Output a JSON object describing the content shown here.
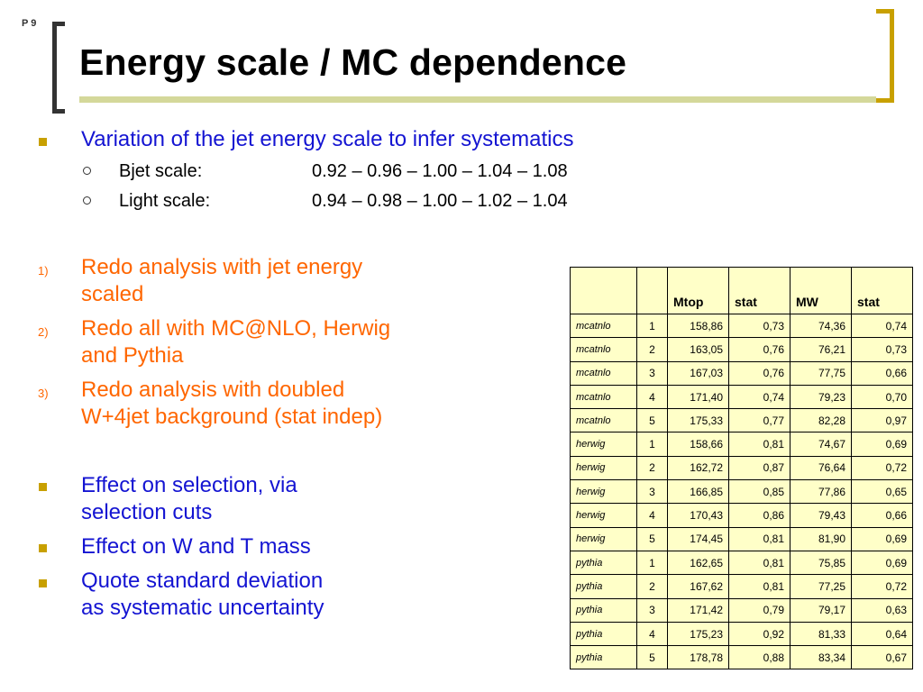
{
  "page_number": "P 9",
  "title": "Energy scale / MC dependence",
  "intro": {
    "bullet": "Variation of the jet energy scale to infer systematics",
    "sub_items": [
      {
        "label": "Bjet scale:",
        "values": "0.92 – 0.96 – 1.00 – 1.04 – 1.08"
      },
      {
        "label": "Light scale:",
        "values": "0.94 – 0.98 – 1.00 – 1.02 – 1.04"
      }
    ]
  },
  "numbered": [
    {
      "num": "1)",
      "line1": "Redo analysis with jet energy",
      "line2": "scaled"
    },
    {
      "num": "2)",
      "line1": "Redo all with MC@NLO, Herwig",
      "line2": "and Pythia"
    },
    {
      "num": "3)",
      "line1": "Redo analysis with doubled",
      "line2": "W+4jet background (stat indep)"
    }
  ],
  "bullets": [
    {
      "line1": "Effect on selection, via",
      "line2": "selection cuts"
    },
    {
      "line1": "Effect on W and T mass",
      "line2": ""
    },
    {
      "line1": "Quote standard deviation",
      "line2": "as systematic uncertainty"
    }
  ],
  "table": {
    "headers": [
      "",
      "",
      "Mtop",
      "stat",
      "MW",
      "stat"
    ],
    "rows": [
      [
        "mcatnlo",
        "1",
        "158,86",
        "0,73",
        "74,36",
        "0,74"
      ],
      [
        "mcatnlo",
        "2",
        "163,05",
        "0,76",
        "76,21",
        "0,73"
      ],
      [
        "mcatnlo",
        "3",
        "167,03",
        "0,76",
        "77,75",
        "0,66"
      ],
      [
        "mcatnlo",
        "4",
        "171,40",
        "0,74",
        "79,23",
        "0,70"
      ],
      [
        "mcatnlo",
        "5",
        "175,33",
        "0,77",
        "82,28",
        "0,97"
      ],
      [
        "herwig",
        "1",
        "158,66",
        "0,81",
        "74,67",
        "0,69"
      ],
      [
        "herwig",
        "2",
        "162,72",
        "0,87",
        "76,64",
        "0,72"
      ],
      [
        "herwig",
        "3",
        "166,85",
        "0,85",
        "77,86",
        "0,65"
      ],
      [
        "herwig",
        "4",
        "170,43",
        "0,86",
        "79,43",
        "0,66"
      ],
      [
        "herwig",
        "5",
        "174,45",
        "0,81",
        "81,90",
        "0,69"
      ],
      [
        "pythia",
        "1",
        "162,65",
        "0,81",
        "75,85",
        "0,69"
      ],
      [
        "pythia",
        "2",
        "167,62",
        "0,81",
        "77,25",
        "0,72"
      ],
      [
        "pythia",
        "3",
        "171,42",
        "0,79",
        "79,17",
        "0,63"
      ],
      [
        "pythia",
        "4",
        "175,23",
        "0,92",
        "81,33",
        "0,64"
      ],
      [
        "pythia",
        "5",
        "178,78",
        "0,88",
        "83,34",
        "0,67"
      ]
    ]
  },
  "colors": {
    "title_bracket_left": "#333333",
    "title_bracket_right": "#c8a000",
    "title_underline": "#d4d89a",
    "bullet_text": "#1414d2",
    "numbered_text": "#ff6600",
    "bullet_marker": "#c8a000",
    "table_fill": "#ffffc8"
  }
}
